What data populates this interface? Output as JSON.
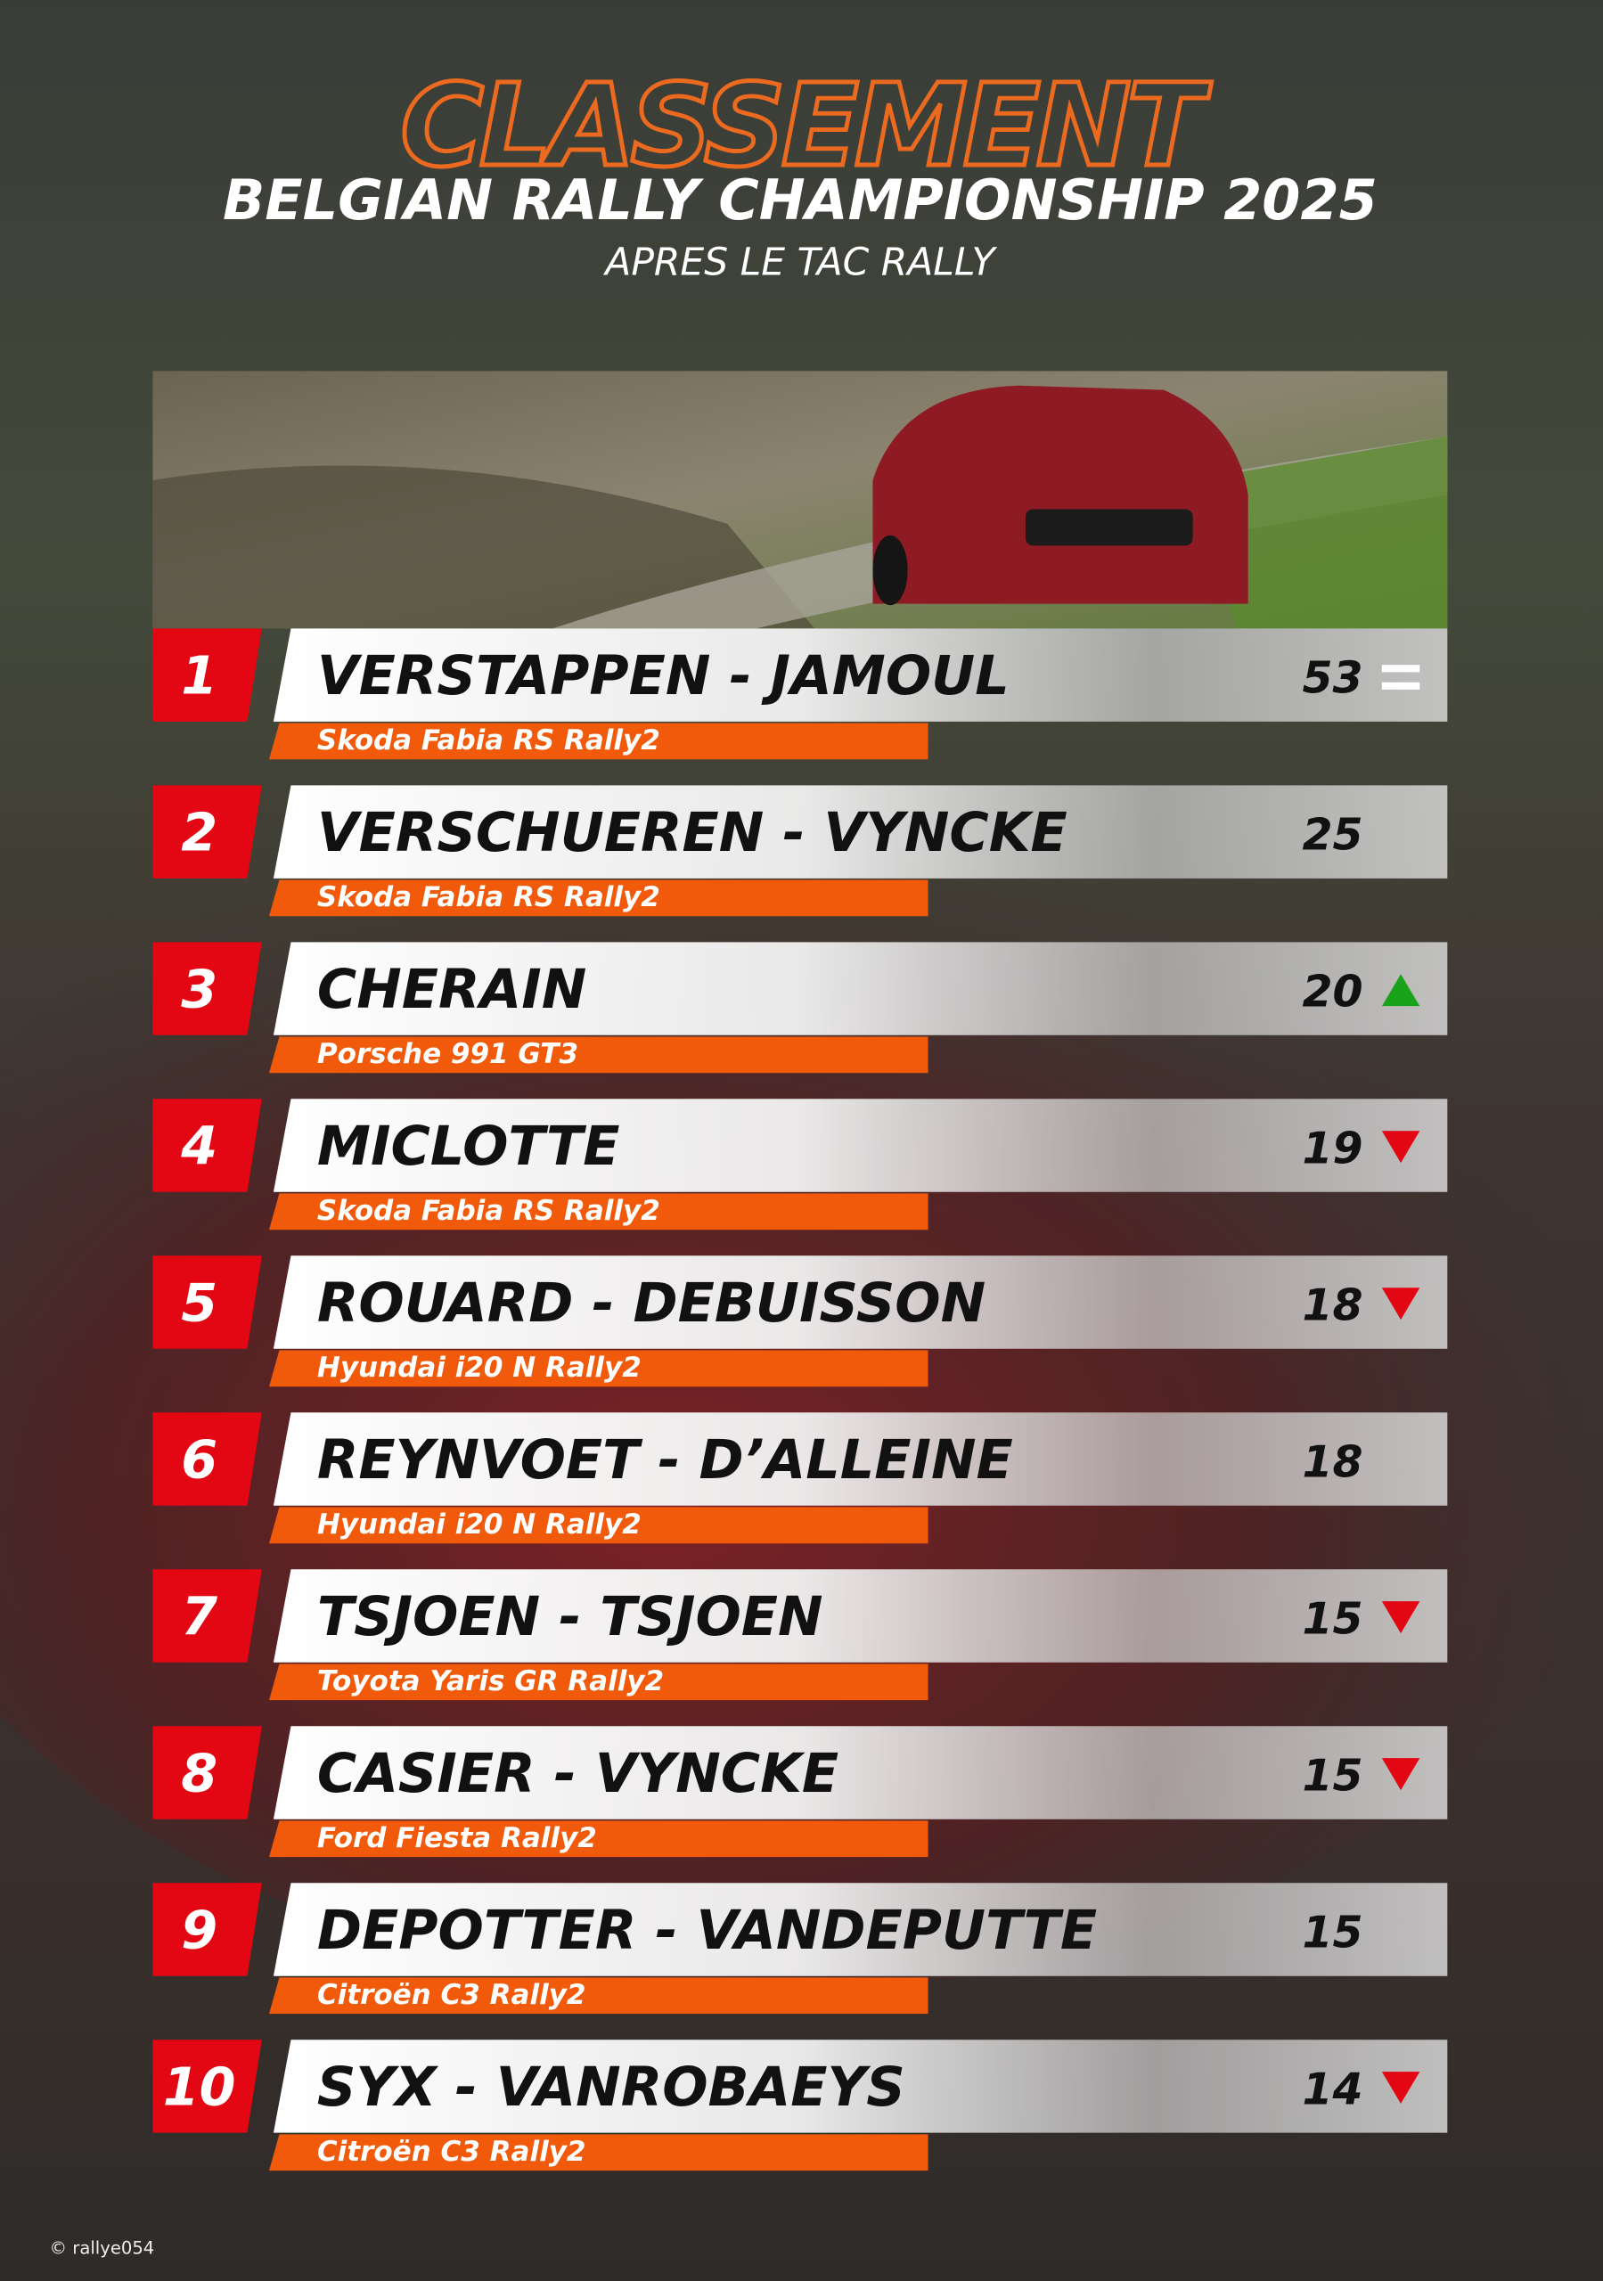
{
  "header": {
    "title": "CLASSEMENT",
    "subtitle": "BELGIAN RALLY CHAMPIONSHIP 2025",
    "event": "APRES LE TAC RALLY"
  },
  "standings": [
    {
      "position": 1,
      "crew": "VERSTAPPEN - JAMOUL",
      "car": "Skoda Fabia RS Rally2",
      "points": 53,
      "trend": "equal"
    },
    {
      "position": 2,
      "crew": "VERSCHUEREN - VYNCKE",
      "car": "Skoda Fabia RS Rally2",
      "points": 25
    },
    {
      "position": 3,
      "crew": "CHERAIN",
      "car": "Porsche 991 GT3",
      "points": 20,
      "trend": "up"
    },
    {
      "position": 4,
      "crew": "MICLOTTE",
      "car": "Skoda Fabia RS Rally2",
      "points": 19,
      "trend": "down"
    },
    {
      "position": 5,
      "crew": "ROUARD - DEBUISSON",
      "car": "Hyundai i20 N Rally2",
      "points": 18,
      "trend": "down"
    },
    {
      "position": 6,
      "crew": "REYNVOET - D’ALLEINE",
      "car": "Hyundai i20 N Rally2",
      "points": 18
    },
    {
      "position": 7,
      "crew": "TSJOEN - TSJOEN",
      "car": "Toyota Yaris GR Rally2",
      "points": 15,
      "trend": "down"
    },
    {
      "position": 8,
      "crew": "CASIER - VYNCKE",
      "car": "Ford Fiesta Rally2",
      "points": 15,
      "trend": "down"
    },
    {
      "position": 9,
      "crew": "DEPOTTER - VANDEPUTTE",
      "car": "Citroën C3 Rally2",
      "points": 15
    },
    {
      "position": 10,
      "crew": "SYX - VANROBAEYS",
      "car": "Citroën C3 Rally2",
      "points": 14,
      "trend": "down"
    }
  ],
  "footer": {
    "credit": "© rallye054"
  }
}
